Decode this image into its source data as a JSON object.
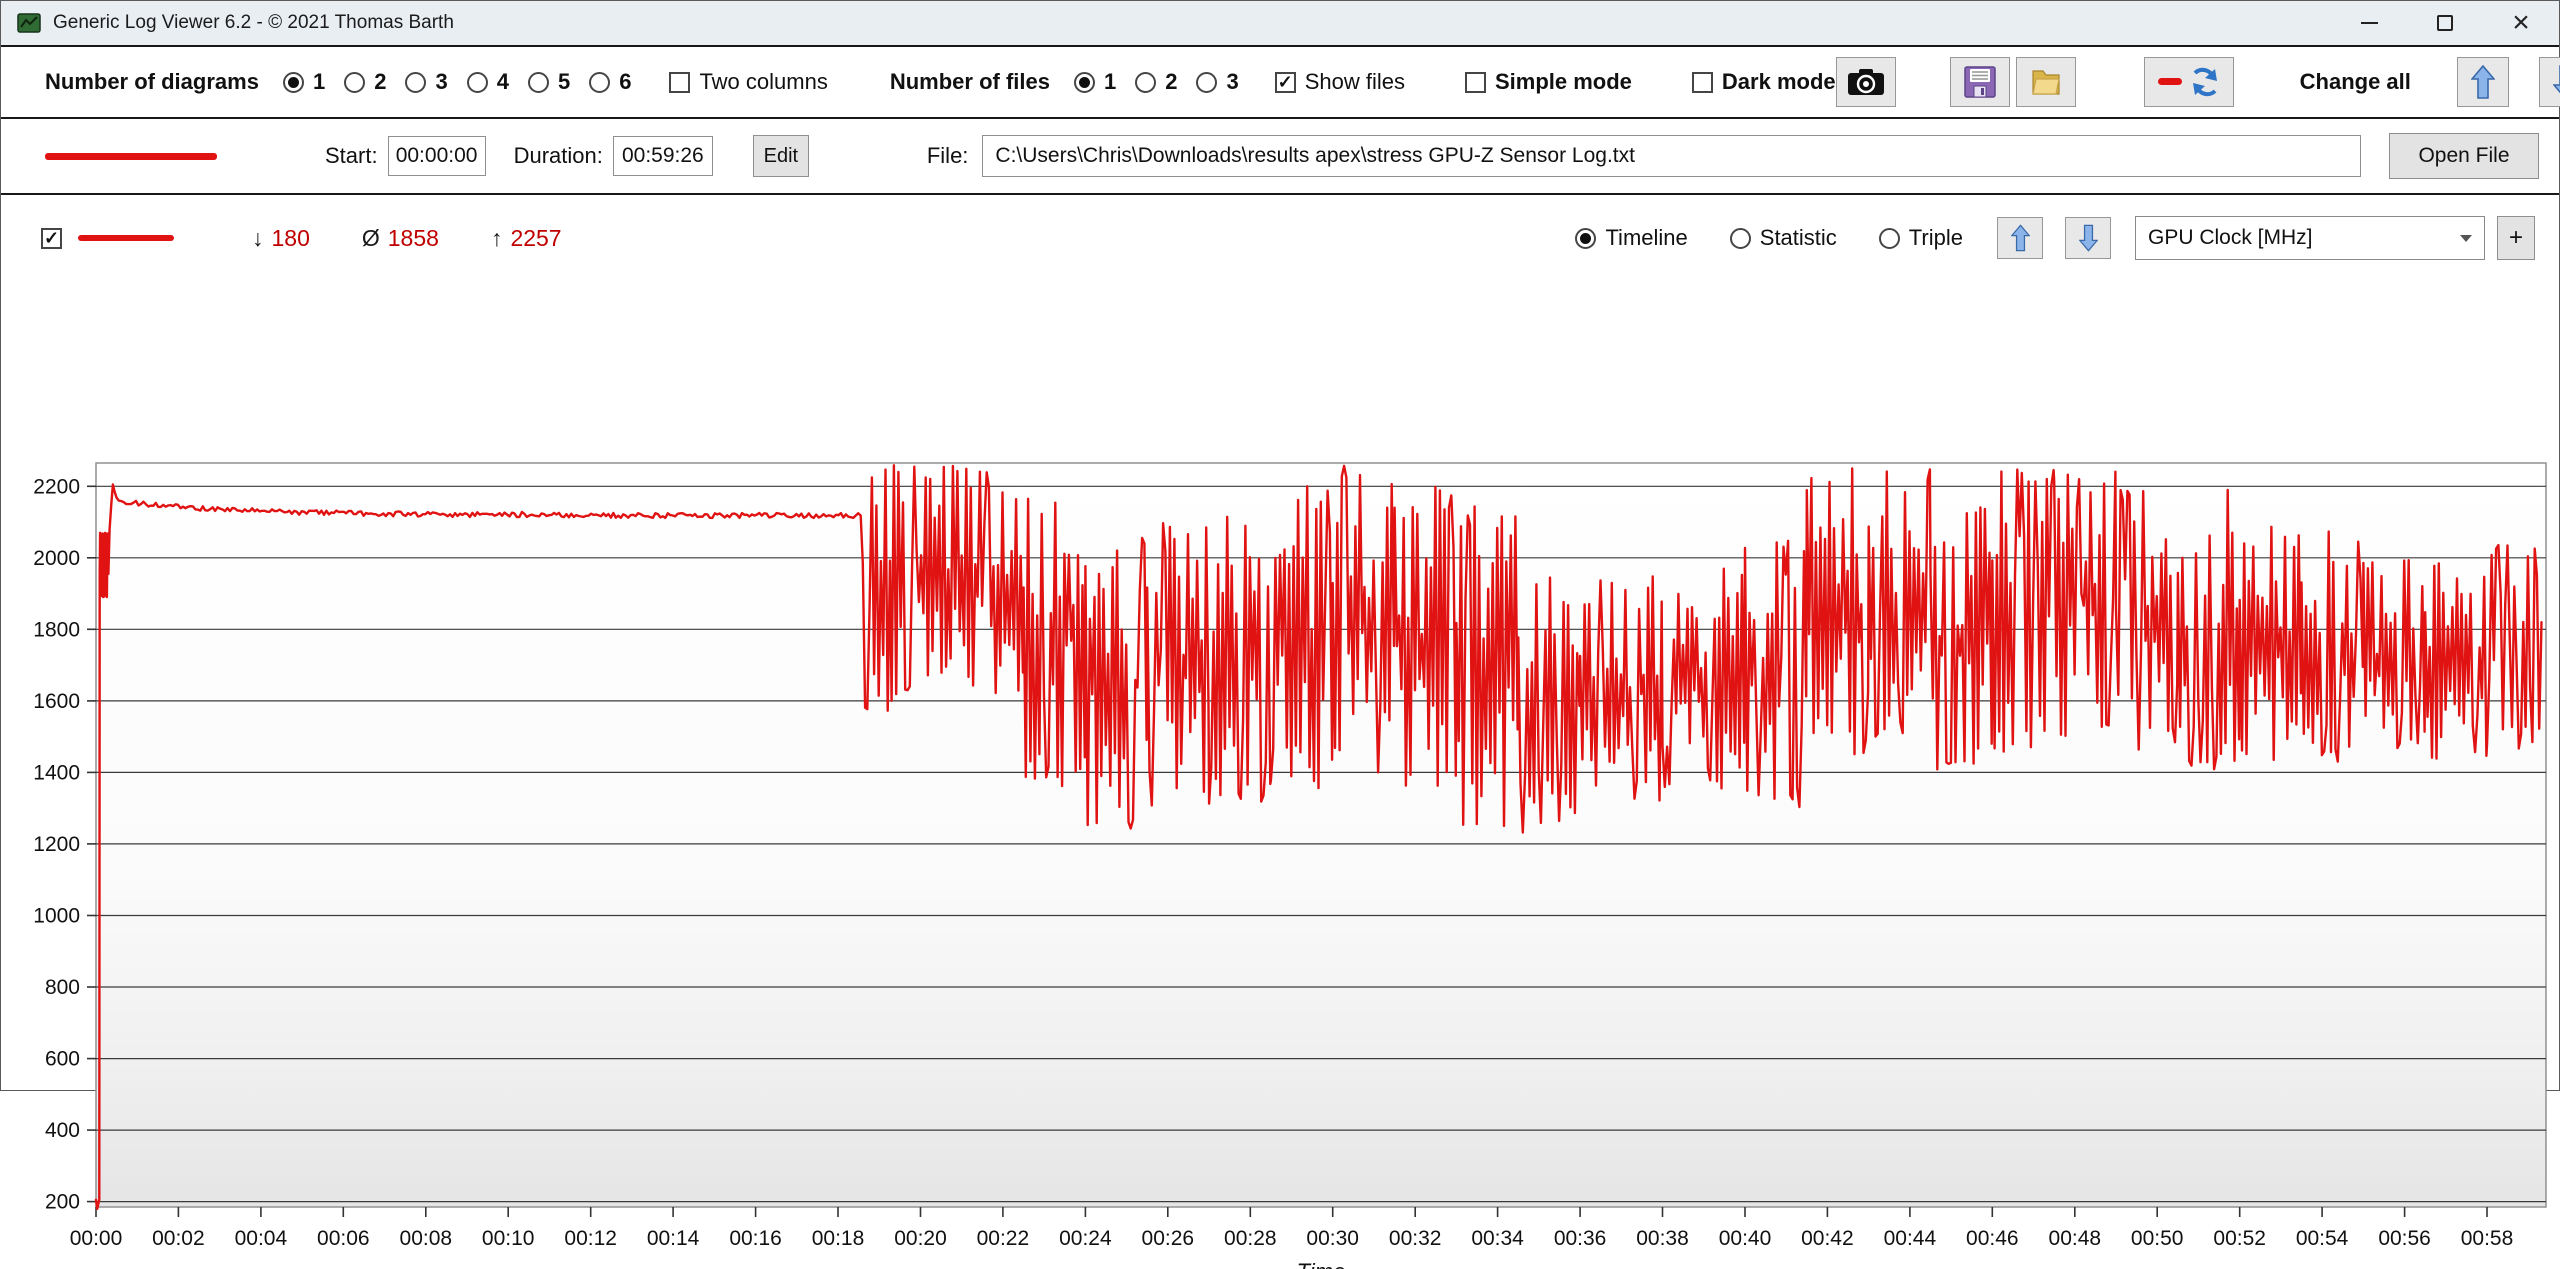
{
  "window": {
    "title": "Generic Log Viewer 6.2 - © 2021 Thomas Barth",
    "controls": {
      "minimize": "–",
      "maximize": "",
      "close": "×"
    }
  },
  "toolbar": {
    "diagrams_label": "Number of diagrams",
    "diagram_options": [
      "1",
      "2",
      "3",
      "4",
      "5",
      "6"
    ],
    "diagrams_selected": "1",
    "two_columns_label": "Two columns",
    "two_columns_checked": false,
    "files_label": "Number of files",
    "file_options": [
      "1",
      "2",
      "3"
    ],
    "files_selected": "1",
    "show_files_label": "Show files",
    "show_files_checked": true,
    "simple_mode_label": "Simple mode",
    "simple_mode_checked": false,
    "dark_mode_label": "Dark mode",
    "dark_mode_checked": false,
    "change_all_label": "Change all"
  },
  "filebar": {
    "start_label": "Start:",
    "start_value": "00:00:00",
    "duration_label": "Duration:",
    "duration_value": "00:59:26",
    "edit_label": "Edit",
    "file_label": "File:",
    "file_path": "C:\\Users\\Chris\\Downloads\\results apex\\stress GPU-Z Sensor Log.txt",
    "open_file_label": "Open File"
  },
  "seriesbar": {
    "series_enabled": true,
    "min_symbol": "↓",
    "min_value": "180",
    "avg_symbol": "Ø",
    "avg_value": "1858",
    "max_symbol": "↑",
    "max_value": "2257",
    "view_options": [
      "Timeline",
      "Statistic",
      "Triple"
    ],
    "view_selected": "Timeline",
    "sensor_dropdown_value": "GPU Clock [MHz]",
    "add_button_label": "+",
    "value_color": "#c00000"
  },
  "chart_data": {
    "type": "line",
    "series_name": "GPU Clock [MHz]",
    "xlabel": "Time",
    "x_unit": "minutes",
    "xlim": [
      0,
      59.43
    ],
    "ylim": [
      185,
      2265
    ],
    "yticks": [
      200,
      400,
      600,
      800,
      1000,
      1200,
      1400,
      1600,
      1800,
      2000,
      2200
    ],
    "xtick_minutes": [
      0,
      2,
      4,
      6,
      8,
      10,
      12,
      14,
      16,
      18,
      20,
      22,
      24,
      26,
      28,
      30,
      32,
      34,
      36,
      38,
      40,
      42,
      44,
      46,
      48,
      50,
      52,
      54,
      56,
      58
    ],
    "xtick_labels": [
      "00:00",
      "00:02",
      "00:04",
      "00:06",
      "00:08",
      "00:10",
      "00:12",
      "00:14",
      "00:16",
      "00:18",
      "00:20",
      "00:22",
      "00:24",
      "00:26",
      "00:28",
      "00:30",
      "00:32",
      "00:34",
      "00:36",
      "00:38",
      "00:40",
      "00:42",
      "00:44",
      "00:46",
      "00:48",
      "00:50",
      "00:52",
      "00:54",
      "00:56",
      "00:58"
    ],
    "grid": true,
    "legend": "none",
    "line_color": "#e01212",
    "grid_color": "#3a3a3a",
    "border_color": "#909090",
    "background_gradient": [
      "#ffffff",
      "#fbfbfb",
      "#efefef",
      "#e5e5e5"
    ],
    "stats": {
      "min": 180,
      "avg": 1858,
      "max": 2257
    },
    "intro_points": [
      [
        0.0,
        205
      ],
      [
        0.03,
        180
      ],
      [
        0.06,
        196
      ],
      [
        0.08,
        205
      ],
      [
        0.09,
        1960
      ],
      [
        0.1,
        2070
      ],
      [
        0.115,
        1900
      ],
      [
        0.13,
        2065
      ],
      [
        0.145,
        1893
      ],
      [
        0.16,
        2068
      ],
      [
        0.175,
        1890
      ],
      [
        0.19,
        2066
      ],
      [
        0.205,
        1892
      ],
      [
        0.22,
        2070
      ],
      [
        0.235,
        1995
      ],
      [
        0.25,
        2065
      ],
      [
        0.265,
        1890
      ],
      [
        0.28,
        2068
      ],
      [
        0.3,
        1955
      ],
      [
        0.33,
        2080
      ],
      [
        0.37,
        2150
      ],
      [
        0.41,
        2205
      ],
      [
        0.45,
        2185
      ],
      [
        0.5,
        2168
      ],
      [
        0.55,
        2160
      ]
    ],
    "flat_segment": {
      "t0": 0.55,
      "t1": 18.6,
      "start": 2158,
      "end": 2118,
      "noise": 7
    },
    "noisy_segments": [
      [
        18.6,
        19.3,
        1560,
        2250
      ],
      [
        19.3,
        21.0,
        1600,
        2260
      ],
      [
        21.0,
        22.5,
        1580,
        2250
      ],
      [
        22.5,
        24.0,
        1350,
        2200
      ],
      [
        24.0,
        25.5,
        1240,
        2060
      ],
      [
        25.5,
        27.0,
        1300,
        2100
      ],
      [
        27.0,
        28.5,
        1300,
        2150
      ],
      [
        28.5,
        30.0,
        1350,
        2200
      ],
      [
        30.0,
        31.5,
        1400,
        2257
      ],
      [
        31.5,
        33.0,
        1350,
        2200
      ],
      [
        33.0,
        34.5,
        1250,
        2150
      ],
      [
        34.5,
        36.0,
        1240,
        1950
      ],
      [
        36.0,
        38.0,
        1300,
        1950
      ],
      [
        38.0,
        40.0,
        1350,
        1980
      ],
      [
        40.0,
        41.5,
        1300,
        2050
      ],
      [
        41.5,
        43.0,
        1450,
        2250
      ],
      [
        43.0,
        44.5,
        1500,
        2250
      ],
      [
        44.5,
        46.0,
        1400,
        2150
      ],
      [
        46.0,
        47.5,
        1450,
        2250
      ],
      [
        47.5,
        49.0,
        1500,
        2250
      ],
      [
        49.0,
        50.5,
        1450,
        2200
      ],
      [
        50.5,
        52.0,
        1400,
        2200
      ],
      [
        52.0,
        53.5,
        1400,
        2100
      ],
      [
        53.5,
        55.0,
        1430,
        2080
      ],
      [
        55.0,
        56.5,
        1450,
        2000
      ],
      [
        56.5,
        58.0,
        1420,
        2050
      ],
      [
        58.0,
        59.35,
        1450,
        2060
      ]
    ],
    "forced_points": [
      [
        30.3,
        2257
      ],
      [
        34.6,
        1232
      ],
      [
        59.3,
        1820
      ]
    ]
  }
}
